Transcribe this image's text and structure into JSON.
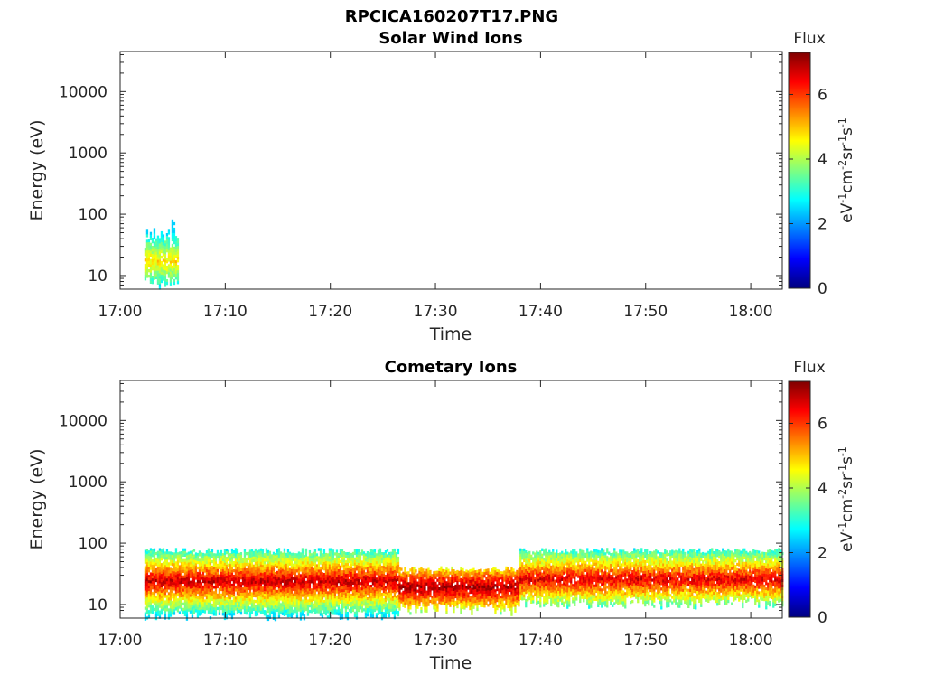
{
  "figure_title": "RPCICA160207T17.PNG",
  "colorbar": {
    "title": "Flux",
    "unit_parts": [
      "eV",
      "-1",
      "cm",
      "-2",
      "sr",
      "-1",
      "s",
      "-1"
    ],
    "min": 0,
    "max": 7.3,
    "ticks": [
      "0",
      "2",
      "4",
      "6"
    ],
    "colormap": "jet"
  },
  "chart_data": [
    {
      "type": "heatmap",
      "title": "Solar Wind Ions",
      "xlabel": "Time",
      "ylabel": "Energy (eV)",
      "y_scale": "log",
      "ylim": [
        6,
        45000
      ],
      "xlim": [
        "17:00",
        "18:03"
      ],
      "x_ticks": [
        "17:00",
        "17:10",
        "17:20",
        "17:30",
        "17:40",
        "17:50",
        "18:00"
      ],
      "y_ticks": [
        "10",
        "100",
        "1000",
        "10000"
      ],
      "grid": false,
      "regions": [
        {
          "t_start": "17:02.3",
          "t_end": "17:05.5",
          "e_low": 7,
          "e_high": 80,
          "flux_core": 4.8,
          "flux_edge": 2.8,
          "note_core_energy": 18
        }
      ]
    },
    {
      "type": "heatmap",
      "title": "Cometary Ions",
      "xlabel": "Time",
      "ylabel": "Energy (eV)",
      "y_scale": "log",
      "ylim": [
        6,
        45000
      ],
      "xlim": [
        "17:00",
        "18:03"
      ],
      "x_ticks": [
        "17:00",
        "17:10",
        "17:20",
        "17:30",
        "17:40",
        "17:50",
        "18:00"
      ],
      "y_ticks": [
        "10",
        "100",
        "1000",
        "10000"
      ],
      "grid": false,
      "regions": [
        {
          "t_start": "17:02.3",
          "t_end": "17:26.5",
          "e_low": 6,
          "e_high": 80,
          "peak_energy": 25,
          "peak_flux": 6.8
        },
        {
          "t_start": "17:26.5",
          "t_end": "17:38",
          "e_low": 8,
          "e_high": 40,
          "peak_energy": 20,
          "peak_flux": 7.0
        },
        {
          "t_start": "17:38",
          "t_end": "18:03",
          "e_low": 10,
          "e_high": 80,
          "peak_energy": 27,
          "peak_flux": 6.6
        }
      ]
    }
  ]
}
